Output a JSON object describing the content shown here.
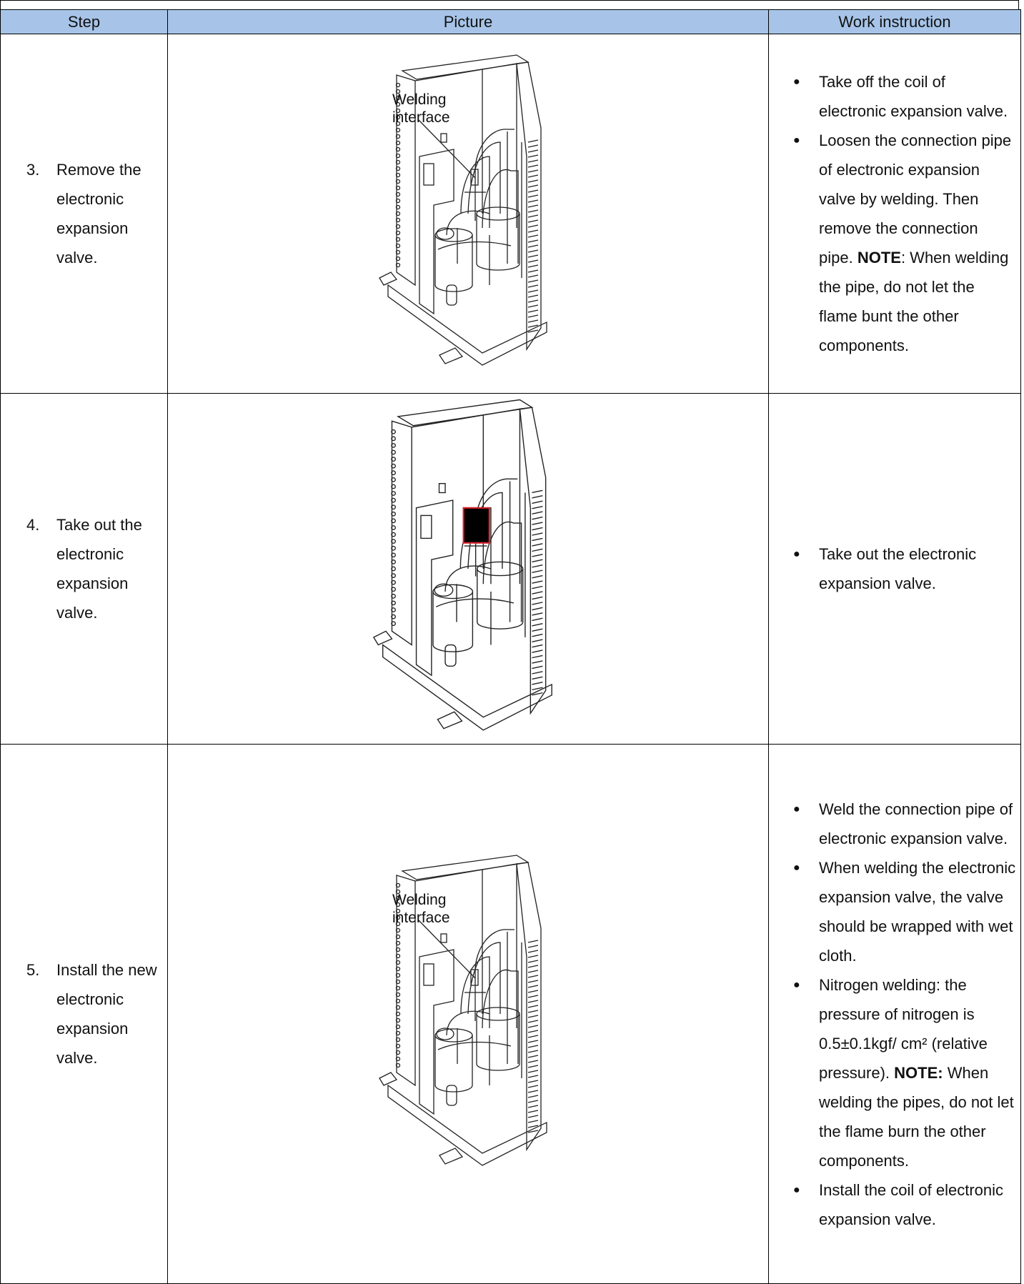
{
  "header": [
    "Step",
    "Picture",
    "Work instruction"
  ],
  "rows": [
    {
      "number": "3.",
      "step": "Remove the electronic expansion valve.",
      "picture_label": "Welding interface",
      "instructions": [
        [
          {
            "text": "Take off the coil of electronic expansion valve."
          }
        ],
        [
          {
            "text": "Loosen the connection pipe of electronic expansion valve by welding. Then remove the connection pipe. "
          },
          {
            "text": "NOTE",
            "bold": true
          },
          {
            "text": ": When welding the pipe, do not let the flame bunt the other components."
          }
        ]
      ]
    },
    {
      "number": "4.",
      "step": "Take out the electronic expansion valve.",
      "instructions": [
        [
          {
            "text": "Take out the electronic expansion valve."
          }
        ]
      ]
    },
    {
      "number": "5.",
      "step": "Install the new electronic expansion valve.",
      "picture_label": "Welding interface",
      "instructions": [
        [
          {
            "text": "Weld the connection pipe of electronic expansion valve."
          }
        ],
        [
          {
            "text": "When welding the electronic expansion valve, the valve should be wrapped with wet cloth."
          }
        ],
        [
          {
            "text": "Nitrogen welding: the pressure of nitrogen is 0.5±0.1kgf/ cm² (relative pressure). "
          },
          {
            "text": "NOTE:",
            "bold": true
          },
          {
            "text": " When welding the pipes, do not let the flame burn the other components."
          }
        ],
        [
          {
            "text": "Install the coil of electronic expansion valve."
          }
        ]
      ]
    }
  ]
}
